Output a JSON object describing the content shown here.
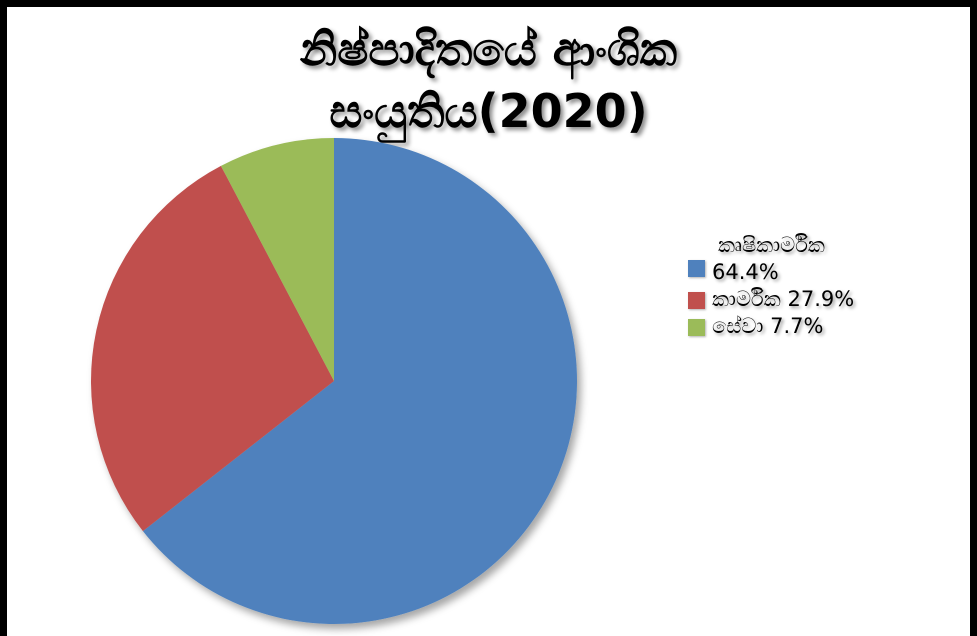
{
  "chart_data": {
    "type": "pie",
    "title_lines": [
      "නිෂ්පාදිතයේ ආංශික",
      "සංයුතිය(2020)"
    ],
    "slices": [
      {
        "label": "කෘෂිකාර්මික",
        "value": 64.4,
        "value_label": "64.4%",
        "color": "#4f81bd"
      },
      {
        "label": "කාර්මික",
        "value": 27.9,
        "value_label": "27.9%",
        "color": "#c0504d"
      },
      {
        "label": "සේවා",
        "value": 7.7,
        "value_label": "7.7%",
        "color": "#9bbb59"
      }
    ],
    "legend_position": "right",
    "start_angle": "12 o'clock",
    "direction": "clockwise"
  }
}
